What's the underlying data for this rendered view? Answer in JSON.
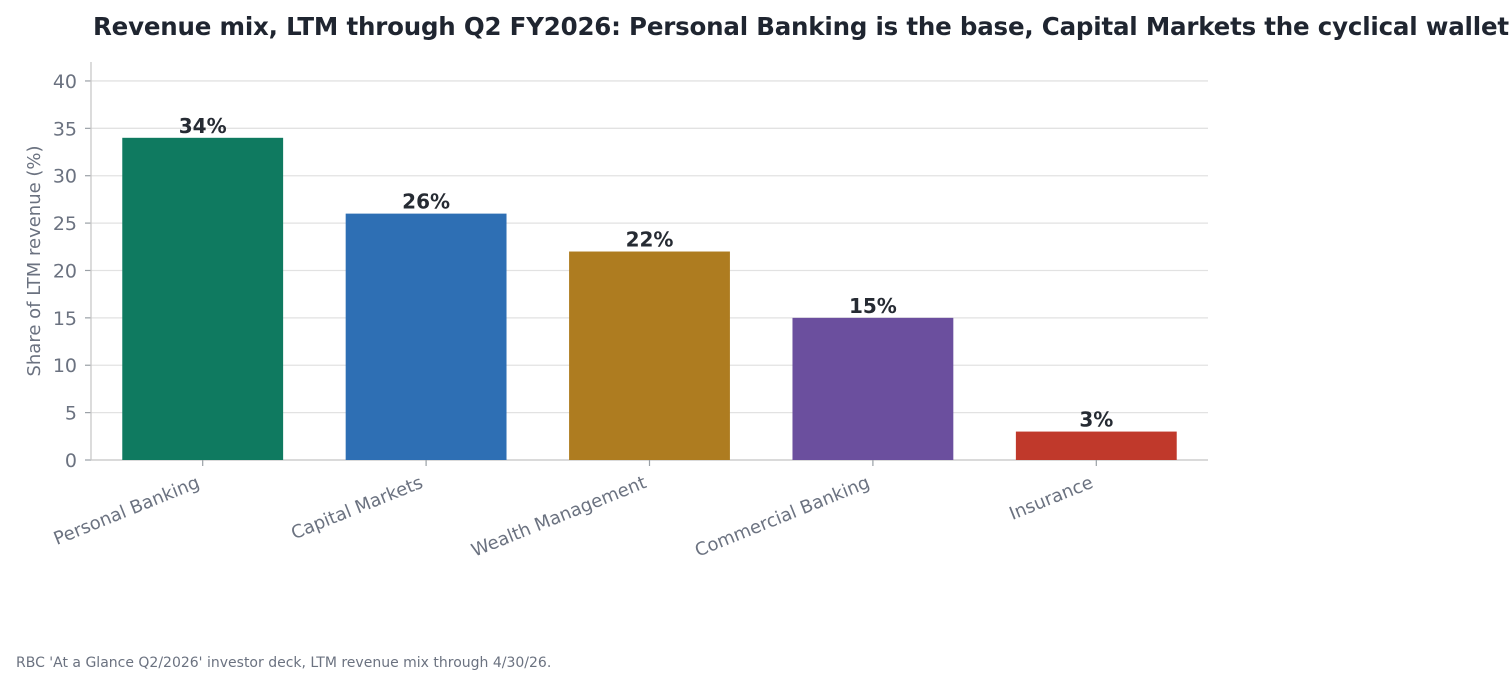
{
  "chart_data": {
    "type": "bar",
    "title": "Revenue mix, LTM through Q2 FY2026: Personal Banking is the base, Capital Markets the cyclical wallet",
    "xlabel": "",
    "ylabel": "Share of LTM revenue (%)",
    "ylim": [
      0,
      42
    ],
    "yticks": [
      0,
      5,
      10,
      15,
      20,
      25,
      30,
      35,
      40
    ],
    "categories": [
      "Personal Banking",
      "Capital Markets",
      "Wealth Management",
      "Commercial Banking",
      "Insurance"
    ],
    "values": [
      34,
      26,
      22,
      15,
      3
    ],
    "data_labels": [
      "34%",
      "26%",
      "22%",
      "15%",
      "3%"
    ],
    "colors": [
      "#0f7a60",
      "#2e6fb4",
      "#ae7c20",
      "#6b4f9e",
      "#c0392b"
    ],
    "grid": true,
    "legend": "none"
  },
  "source_note": "RBC 'At a Glance Q2/2026' investor deck, LTM revenue mix through 4/30/26."
}
